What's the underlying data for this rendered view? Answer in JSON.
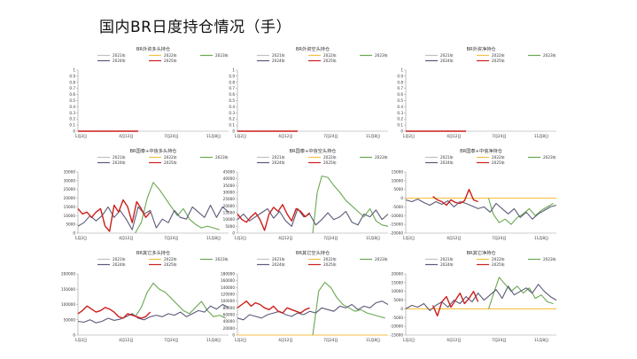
{
  "page": {
    "title": "国内BR日度持仓情况（手）"
  },
  "colors": {
    "2021": "#c0c0c0",
    "2022": "#f5c242",
    "2023": "#6aa84f",
    "2024": "#5a5a7a",
    "2025": "#cc1f1a",
    "axis": "#999999"
  },
  "chart_data": [
    {
      "type": "line",
      "title": "BR外资多头持仓",
      "legend": [
        "2021年",
        "2022年",
        "2023年",
        "2024年",
        "2025年"
      ],
      "x_ticks": [
        "1月2日",
        "4月12日",
        "7月24日",
        "11月8日"
      ],
      "y_ticks": [
        "0",
        "0.1",
        "0.2",
        "0.3",
        "0.4",
        "0.5",
        "0.6",
        "0.7",
        "0.8",
        "0.9",
        "1"
      ],
      "ylim": [
        0,
        1
      ],
      "series": [
        {
          "name": "2025年",
          "x": [
            0,
            0.4
          ],
          "values": [
            0,
            0
          ]
        }
      ]
    },
    {
      "type": "line",
      "title": "BR外资空头持仓",
      "legend": [
        "2021年",
        "2022年",
        "2023年",
        "2024年",
        "2025年"
      ],
      "x_ticks": [
        "1月2日",
        "4月12日",
        "7月24日",
        "11月8日"
      ],
      "y_ticks": [
        "0",
        "0.1",
        "0.2",
        "0.3",
        "0.4",
        "0.5",
        "0.6",
        "0.7",
        "0.8",
        "0.9",
        "1"
      ],
      "ylim": [
        0,
        1
      ],
      "series": [
        {
          "name": "2025年",
          "x": [
            0,
            0.4
          ],
          "values": [
            0,
            0
          ]
        }
      ]
    },
    {
      "type": "line",
      "title": "BR外资净持仓",
      "legend": [
        "2021年",
        "2022年",
        "2023年",
        "2024年",
        "2025年"
      ],
      "x_ticks": [
        "1月2日",
        "4月12日",
        "7月24日",
        "11月8日"
      ],
      "y_ticks": [
        "0",
        "0.1",
        "0.2",
        "0.3",
        "0.4",
        "0.5",
        "0.6",
        "0.7",
        "0.8",
        "0.9",
        "1"
      ],
      "ylim": [
        0,
        1
      ],
      "series": [
        {
          "name": "2025年",
          "x": [
            0,
            0.4
          ],
          "values": [
            0,
            0
          ]
        }
      ]
    },
    {
      "type": "line",
      "title": "BR国泰+中信多头持仓",
      "legend": [
        "2021年",
        "2022年",
        "2023年",
        "2024年",
        "2025年"
      ],
      "x_ticks": [
        "1月2日",
        "4月12日",
        "7月24日",
        "11月8日"
      ],
      "y_ticks": [
        "0",
        "5000",
        "10000",
        "15000",
        "20000",
        "25000",
        "30000",
        "35000"
      ],
      "ylim": [
        0,
        35000
      ],
      "series": [
        {
          "name": "2023年",
          "x": [
            0.38,
            0.42,
            0.46,
            0.5,
            0.54,
            0.58,
            0.62,
            0.66,
            0.7,
            0.74,
            0.78,
            0.82,
            0.86,
            0.9,
            0.94
          ],
          "values": [
            0,
            6000,
            20000,
            29000,
            25000,
            20000,
            15000,
            10000,
            14000,
            8000,
            5000,
            3000,
            4000,
            3000,
            2000
          ]
        },
        {
          "name": "2024年",
          "x": [
            0,
            0.04,
            0.08,
            0.12,
            0.16,
            0.2,
            0.24,
            0.28,
            0.32,
            0.36,
            0.4,
            0.44,
            0.48,
            0.52,
            0.56,
            0.6,
            0.64,
            0.68,
            0.72,
            0.76,
            0.8,
            0.84,
            0.88,
            0.92,
            0.96,
            1.0
          ],
          "values": [
            4000,
            6000,
            10000,
            7000,
            10000,
            15000,
            9000,
            13000,
            8000,
            2000,
            15000,
            11000,
            13000,
            3000,
            8000,
            6000,
            13000,
            9000,
            8000,
            15000,
            12000,
            9000,
            16000,
            9000,
            15000,
            12000
          ]
        },
        {
          "name": "2025年",
          "x": [
            0,
            0.03,
            0.06,
            0.09,
            0.12,
            0.15,
            0.18,
            0.21,
            0.24,
            0.27,
            0.3,
            0.33,
            0.36,
            0.39,
            0.42,
            0.45,
            0.48
          ],
          "values": [
            14000,
            11000,
            12000,
            9000,
            12000,
            14000,
            4000,
            1000,
            16000,
            12000,
            19000,
            15000,
            6000,
            18000,
            14000,
            9000,
            12000
          ]
        }
      ]
    },
    {
      "type": "line",
      "title": "BR国泰+中信空头持仓",
      "legend": [
        "2021年",
        "2022年",
        "2023年",
        "2024年",
        "2025年"
      ],
      "x_ticks": [
        "1月2日",
        "4月12日",
        "7月24日",
        "11月8日"
      ],
      "y_ticks": [
        "0",
        "5000",
        "10000",
        "15000",
        "20000",
        "25000",
        "30000",
        "35000",
        "40000",
        "45000"
      ],
      "ylim": [
        0,
        45000
      ],
      "series": [
        {
          "name": "2023年",
          "x": [
            0.5,
            0.53,
            0.56,
            0.6,
            0.64,
            0.68,
            0.72,
            0.76,
            0.8,
            0.84,
            0.88,
            0.92,
            0.96,
            1.0
          ],
          "values": [
            0,
            30000,
            42000,
            41000,
            35000,
            30000,
            24000,
            20000,
            16000,
            12000,
            18000,
            9000,
            6000,
            5000
          ]
        },
        {
          "name": "2024年",
          "x": [
            0,
            0.04,
            0.08,
            0.12,
            0.16,
            0.2,
            0.24,
            0.28,
            0.32,
            0.36,
            0.4,
            0.44,
            0.48,
            0.52,
            0.56,
            0.6,
            0.64,
            0.68,
            0.72,
            0.76,
            0.8,
            0.84,
            0.88,
            0.92,
            0.96,
            1.0
          ],
          "values": [
            10000,
            14000,
            9000,
            12000,
            15000,
            18000,
            11000,
            16000,
            9000,
            5000,
            18000,
            12000,
            14000,
            6000,
            10000,
            15000,
            10000,
            12000,
            16000,
            8000,
            6000,
            14000,
            12000,
            17000,
            10000,
            14000
          ]
        },
        {
          "name": "2025年",
          "x": [
            0,
            0.03,
            0.06,
            0.09,
            0.12,
            0.15,
            0.18,
            0.21,
            0.24,
            0.27,
            0.3,
            0.33,
            0.36,
            0.39,
            0.42,
            0.45,
            0.48
          ],
          "values": [
            14000,
            10000,
            8000,
            12000,
            15000,
            10000,
            2000,
            14000,
            19000,
            16000,
            21000,
            14000,
            9000,
            18000,
            16000,
            12000,
            15000
          ]
        }
      ]
    },
    {
      "type": "line",
      "title": "BR国泰+中信净持仓",
      "legend": [
        "2021年",
        "2022年",
        "2023年",
        "2024年",
        "2025年"
      ],
      "x_ticks": [
        "1月2日",
        "4月12日",
        "7月24日",
        "11月8日"
      ],
      "y_ticks": [
        "-20000",
        "-15000",
        "-10000",
        "-5000",
        "0",
        "5000",
        "10000",
        "15000"
      ],
      "ylim": [
        -20000,
        15000
      ],
      "series": [
        {
          "name": "2022年",
          "x": [
            0,
            1.0
          ],
          "values": [
            0,
            0
          ]
        },
        {
          "name": "2023年",
          "x": [
            0.55,
            0.58,
            0.62,
            0.66,
            0.7,
            0.74,
            0.78,
            0.82,
            0.86,
            0.9,
            0.94,
            0.98
          ],
          "values": [
            0,
            -9000,
            -14000,
            -12000,
            -15000,
            -11000,
            -9000,
            -6000,
            -10000,
            -7000,
            -5000,
            -3000
          ]
        },
        {
          "name": "2024年",
          "x": [
            0,
            0.04,
            0.08,
            0.12,
            0.16,
            0.2,
            0.24,
            0.28,
            0.32,
            0.36,
            0.4,
            0.44,
            0.48,
            0.52,
            0.56,
            0.6,
            0.64,
            0.68,
            0.72,
            0.76,
            0.8,
            0.84,
            0.88,
            0.92,
            0.96,
            1.0
          ],
          "values": [
            -1000,
            -2000,
            -500,
            -2500,
            -4000,
            -2000,
            -3500,
            -1500,
            -5000,
            -2000,
            -3000,
            -4500,
            -6000,
            -5000,
            -8000,
            -3000,
            -6000,
            -9000,
            -6000,
            -11000,
            -8000,
            -12000,
            -9000,
            -7000,
            -5000,
            -4000
          ]
        },
        {
          "name": "2025年",
          "x": [
            0.18,
            0.21,
            0.24,
            0.27,
            0.3,
            0.33,
            0.36,
            0.39,
            0.42,
            0.45,
            0.48
          ],
          "values": [
            1000,
            -1000,
            -2000,
            -4000,
            -1000,
            -2500,
            -3000,
            -1500,
            5000,
            -1000,
            -2000
          ]
        }
      ]
    },
    {
      "type": "line",
      "title": "BR其它多头持仓",
      "legend": [
        "2021年",
        "2022年",
        "2023年",
        "2024年",
        "2025年"
      ],
      "x_ticks": [
        "1月2日",
        "4月12日",
        "7月24日",
        "11月8日"
      ],
      "y_ticks": [
        "0",
        "50000",
        "100000",
        "150000",
        "200000"
      ],
      "ylim": [
        0,
        200000
      ],
      "series": [
        {
          "name": "2023年",
          "x": [
            0.38,
            0.42,
            0.46,
            0.5,
            0.54,
            0.58,
            0.62,
            0.66,
            0.7,
            0.74,
            0.78,
            0.82,
            0.86,
            0.9,
            0.94,
            0.98
          ],
          "values": [
            60000,
            90000,
            140000,
            170000,
            150000,
            140000,
            120000,
            100000,
            80000,
            70000,
            90000,
            110000,
            80000,
            60000,
            65000,
            55000
          ]
        },
        {
          "name": "2024年",
          "x": [
            0,
            0.04,
            0.08,
            0.12,
            0.16,
            0.2,
            0.24,
            0.28,
            0.32,
            0.36,
            0.4,
            0.44,
            0.48,
            0.52,
            0.56,
            0.6,
            0.64,
            0.68,
            0.72,
            0.76,
            0.8,
            0.84,
            0.88,
            0.92,
            0.96,
            1.0
          ],
          "values": [
            45000,
            42000,
            50000,
            40000,
            45000,
            55000,
            48000,
            52000,
            60000,
            70000,
            55000,
            50000,
            60000,
            65000,
            60000,
            70000,
            65000,
            75000,
            60000,
            70000,
            80000,
            75000,
            95000,
            85000,
            100000,
            90000
          ]
        },
        {
          "name": "2025年",
          "x": [
            0,
            0.03,
            0.06,
            0.09,
            0.12,
            0.15,
            0.18,
            0.21,
            0.24,
            0.27,
            0.3,
            0.33,
            0.36,
            0.39,
            0.42,
            0.45,
            0.48
          ],
          "values": [
            70000,
            80000,
            95000,
            85000,
            75000,
            80000,
            90000,
            85000,
            75000,
            60000,
            55000,
            70000,
            65000,
            60000,
            55000,
            60000,
            75000
          ]
        }
      ]
    },
    {
      "type": "line",
      "title": "BR其它空头持仓",
      "legend": [
        "2021年",
        "2022年",
        "2023年",
        "2024年",
        "2025年"
      ],
      "x_ticks": [
        "1月2日",
        "4月12日",
        "7月24日",
        "11月8日"
      ],
      "y_ticks": [
        "0",
        "20000",
        "40000",
        "60000",
        "80000",
        "100000",
        "120000",
        "140000",
        "160000",
        "180000"
      ],
      "ylim": [
        0,
        180000
      ],
      "series": [
        {
          "name": "2022年",
          "x": [
            0,
            1.0
          ],
          "values": [
            0,
            0
          ]
        },
        {
          "name": "2023年",
          "x": [
            0.5,
            0.54,
            0.58,
            0.62,
            0.66,
            0.7,
            0.74,
            0.78,
            0.82,
            0.86,
            0.9,
            0.94,
            0.98
          ],
          "values": [
            0,
            130000,
            155000,
            140000,
            110000,
            90000,
            80000,
            70000,
            75000,
            65000,
            60000,
            55000,
            50000
          ]
        },
        {
          "name": "2024年",
          "x": [
            0,
            0.04,
            0.08,
            0.12,
            0.16,
            0.2,
            0.24,
            0.28,
            0.32,
            0.36,
            0.4,
            0.44,
            0.48,
            0.52,
            0.56,
            0.6,
            0.64,
            0.68,
            0.72,
            0.76,
            0.8,
            0.84,
            0.88,
            0.92,
            0.96,
            1.0
          ],
          "values": [
            50000,
            45000,
            60000,
            55000,
            50000,
            60000,
            65000,
            70000,
            60000,
            55000,
            65000,
            60000,
            70000,
            65000,
            80000,
            75000,
            70000,
            85000,
            80000,
            90000,
            75000,
            85000,
            80000,
            95000,
            100000,
            90000
          ]
        },
        {
          "name": "2025年",
          "x": [
            0,
            0.03,
            0.06,
            0.09,
            0.12,
            0.15,
            0.18,
            0.21,
            0.24,
            0.27,
            0.3,
            0.33,
            0.36,
            0.39,
            0.42,
            0.45,
            0.48
          ],
          "values": [
            80000,
            90000,
            100000,
            85000,
            95000,
            90000,
            80000,
            75000,
            85000,
            70000,
            65000,
            80000,
            75000,
            70000,
            65000,
            75000,
            80000
          ]
        }
      ]
    },
    {
      "type": "line",
      "title": "BR其它净持仓",
      "legend": [
        "2021年",
        "2022年",
        "2023年",
        "2024年",
        "2025年"
      ],
      "x_ticks": [
        "1月2日",
        "4月12日",
        "7月24日",
        "11月8日"
      ],
      "y_ticks": [
        "-15000",
        "-10000",
        "-5000",
        "0",
        "5000",
        "10000",
        "15000",
        "20000"
      ],
      "ylim": [
        -15000,
        20000
      ],
      "series": [
        {
          "name": "2022年",
          "x": [
            0,
            1.0
          ],
          "values": [
            0,
            0
          ]
        },
        {
          "name": "2023年",
          "x": [
            0.55,
            0.58,
            0.62,
            0.66,
            0.7,
            0.74,
            0.78,
            0.82,
            0.86,
            0.9,
            0.94,
            0.98
          ],
          "values": [
            0,
            8000,
            18000,
            14000,
            10000,
            13000,
            9000,
            12000,
            6000,
            8000,
            4000,
            3000
          ]
        },
        {
          "name": "2024年",
          "x": [
            0,
            0.04,
            0.08,
            0.12,
            0.16,
            0.2,
            0.24,
            0.28,
            0.32,
            0.36,
            0.4,
            0.44,
            0.48,
            0.52,
            0.56,
            0.6,
            0.64,
            0.68,
            0.72,
            0.76,
            0.8,
            0.84,
            0.88,
            0.92,
            0.96,
            1.0
          ],
          "values": [
            0,
            2000,
            1000,
            3000,
            -1000,
            2000,
            4000,
            1000,
            5000,
            3000,
            7000,
            4000,
            9000,
            5000,
            8000,
            11000,
            6000,
            13000,
            8000,
            10000,
            12000,
            9000,
            14000,
            10000,
            7000,
            5000
          ]
        },
        {
          "name": "2025年",
          "x": [
            0.18,
            0.21,
            0.24,
            0.27,
            0.3,
            0.33,
            0.36,
            0.39,
            0.42,
            0.45,
            0.48
          ],
          "values": [
            2000,
            -4000,
            4000,
            7000,
            1000,
            5000,
            9000,
            3000,
            6000,
            10000,
            4000
          ]
        }
      ]
    }
  ]
}
